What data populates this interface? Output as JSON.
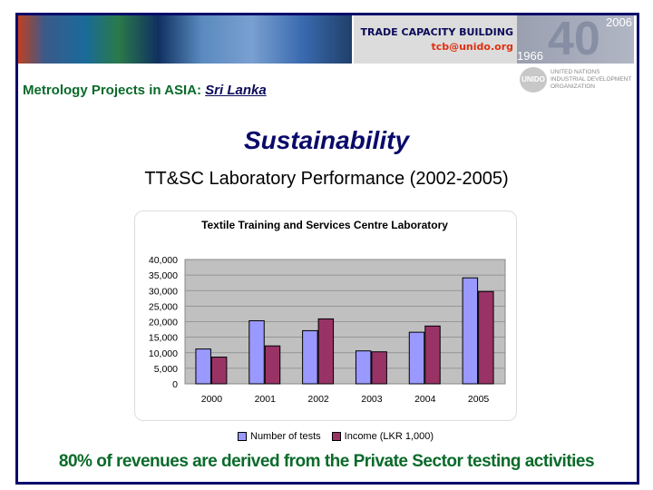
{
  "header": {
    "tcb_title": "TRADE CAPACITY BUILDING",
    "tcb_email": "tcb@unido.org",
    "anniv_number": "40",
    "anniv_end": "2006",
    "anniv_start": "1966",
    "unido_seal": "UNIDO",
    "unido_name": "UNITED NATIONS INDUSTRIAL DEVELOPMENT ORGANIZATION"
  },
  "subtitle": {
    "prefix": "Metrology Projects in ASIA: ",
    "country": "Sri Lanka"
  },
  "title": "Sustainability",
  "heading": "TT&SC Laboratory Performance (2002-2005)",
  "footer": "80% of revenues are derived from the Private Sector testing activities",
  "chart_data": {
    "type": "bar",
    "title": "Textile Training and Services Centre Laboratory",
    "categories": [
      "2000",
      "2001",
      "2002",
      "2003",
      "2004",
      "2005"
    ],
    "series": [
      {
        "name": "Number of tests",
        "values": [
          11200,
          20300,
          17100,
          10600,
          16600,
          34100
        ],
        "color": "#9999ff"
      },
      {
        "name": "Income (LKR 1,000)",
        "values": [
          8600,
          12200,
          20900,
          10300,
          18600,
          29700
        ],
        "color": "#993366"
      }
    ],
    "ylim": [
      0,
      40000
    ],
    "yticks": [
      "0",
      "5,000",
      "10,000",
      "15,000",
      "20,000",
      "25,000",
      "30,000",
      "35,000",
      "40,000"
    ],
    "grid": true,
    "legend": "bottom",
    "plot_background": "#c0c0c0"
  }
}
